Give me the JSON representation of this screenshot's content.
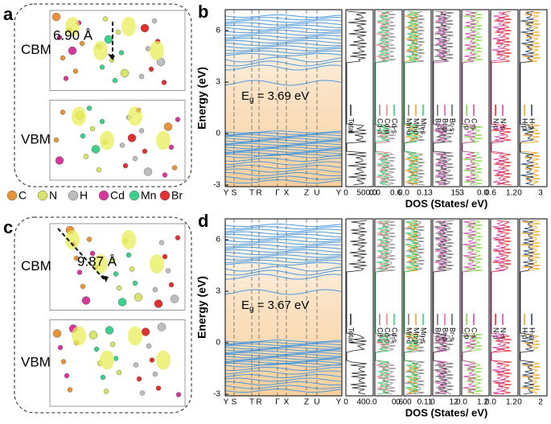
{
  "panels": {
    "legend": [
      "C",
      "N",
      "H",
      "Cd",
      "Mn",
      "Br"
    ],
    "structures": [
      {
        "label": "a",
        "rows": [
          "CBM",
          "VBM"
        ],
        "distance": "6.90 Å"
      },
      {
        "label": "c",
        "rows": [
          "CBM",
          "VBM"
        ],
        "distance": "9.87 Å"
      }
    ],
    "bands": [
      {
        "label": "b",
        "y_label": "Energy (eV)",
        "yticks": [
          "6",
          "3",
          "0",
          "-3"
        ],
        "kpoints": [
          "Y",
          "S",
          "T",
          "R",
          "Γ",
          "X",
          "Z",
          "U",
          "Y"
        ],
        "gap_symbol": "E",
        "gap_sub": "g",
        "gap_value": " = 3.69 eV",
        "dos_label": "DOS (States/ eV)",
        "dos": [
          {
            "names": [
              "Total"
            ],
            "ticks": [
              "0",
              "500.0"
            ]
          },
          {
            "names": [
              "Cd-d",
              "Cd-p",
              "Cd-s"
            ],
            "ticks": [
              "0.0",
              "0.6"
            ]
          },
          {
            "names": [
              "Mn-d",
              "Mn-p",
              "Mn-s"
            ],
            "ticks": [
              "0.0",
              "0.13"
            ]
          },
          {
            "names": [
              "Br-d",
              "Br-p",
              "Br-s"
            ],
            "ticks": [
              "15"
            ]
          },
          {
            "names": [
              "C-p",
              "C-s"
            ],
            "ticks": [
              "3",
              "0.0"
            ]
          },
          {
            "names": [
              "N-p",
              "N-s"
            ],
            "ticks": [
              "0.6",
              "1.2"
            ]
          },
          {
            "names": [
              "H-p",
              "H-s"
            ],
            "ticks": [
              "0",
              "3"
            ]
          }
        ]
      },
      {
        "label": "d",
        "y_label": "Energy (eV)",
        "yticks": [
          "6",
          "3",
          "0",
          "-3"
        ],
        "kpoints": [
          "Y",
          "S",
          "T",
          "R",
          "Γ",
          "X",
          "Z",
          "U",
          "Y"
        ],
        "gap_symbol": "E",
        "gap_sub": "g",
        "gap_value": " = 3.67 eV",
        "dos_label": "DOS (States/ eV)",
        "dos": [
          {
            "names": [
              "Total"
            ],
            "ticks": [
              "0",
              "400.0"
            ]
          },
          {
            "names": [
              "Cd-d",
              "Cd-p",
              "Cd-s"
            ],
            "ticks": [
              "0.6"
            ]
          },
          {
            "names": [
              "Mn-d",
              "Mn-p",
              "Mn-s"
            ],
            "ticks": [
              "0.00",
              "0.11"
            ]
          },
          {
            "names": [
              "Br-d",
              "Br-p",
              "Br-s"
            ],
            "ticks": [
              "0",
              "12"
            ]
          },
          {
            "names": [
              "C-p",
              "C-s"
            ],
            "ticks": [
              "0.0",
              "1.2"
            ]
          },
          {
            "names": [
              "N-p",
              "N-s"
            ],
            "ticks": [
              "0.0",
              "1.2"
            ]
          },
          {
            "names": [
              "H-p",
              "H-s"
            ],
            "ticks": [
              "0",
              "2"
            ]
          }
        ]
      }
    ]
  }
}
